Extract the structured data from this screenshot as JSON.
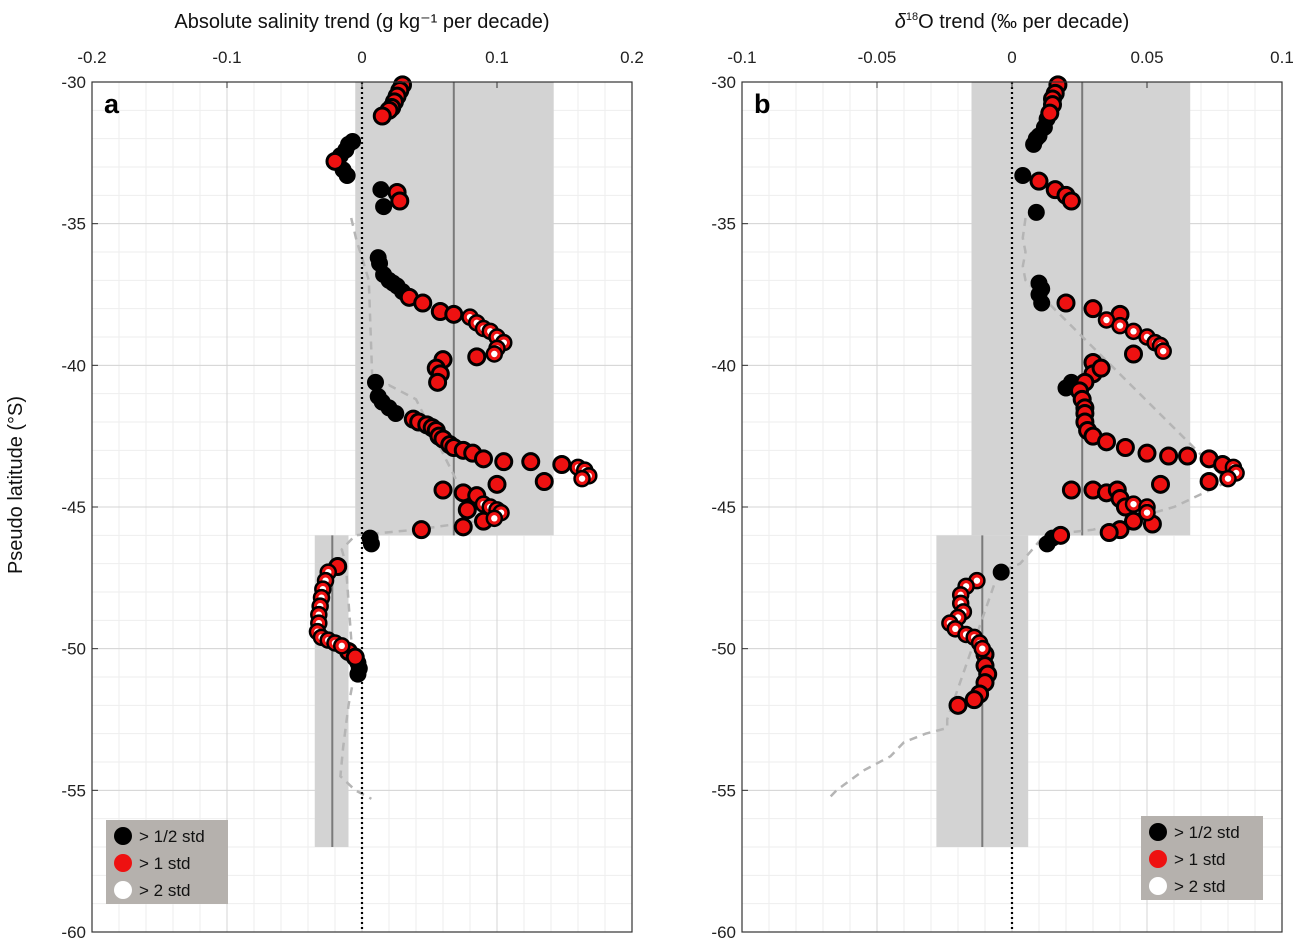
{
  "chart_data": [
    {
      "type": "scatter",
      "panel": "a",
      "xlabel": "Absolute salinity trend (g kg⁻¹ per decade)",
      "ylabel": "Pseudo latitude (°S)",
      "xlim": [
        -0.2,
        0.2
      ],
      "ylim": [
        -60,
        -30
      ],
      "xticks": [
        "-0.2",
        "-0.1",
        "0",
        "0.1",
        "0.2"
      ],
      "yticks": [
        "-30",
        "-35",
        "-40",
        "-45",
        "-50",
        "-55",
        "-60"
      ],
      "grid": true,
      "legend_position": "bottom-left",
      "bands": [
        {
          "lat_top": -30,
          "lat_bottom": -46,
          "mean": 0.068,
          "low": -0.005,
          "high": 0.142
        },
        {
          "lat_top": -46,
          "lat_bottom": -57,
          "mean": -0.022,
          "low": -0.035,
          "high": -0.01
        }
      ],
      "background_trend_dashed": [
        [
          -0.008,
          -34.8
        ],
        [
          -0.004,
          -35.6
        ],
        [
          0.0,
          -36.2
        ],
        [
          0.005,
          -37.0
        ],
        [
          0.008,
          -41.0
        ],
        [
          0.02,
          -40.7
        ],
        [
          0.04,
          -41.2
        ],
        [
          0.085,
          -45.5
        ],
        [
          0.04,
          -45.8
        ],
        [
          -0.005,
          -46.0
        ],
        [
          -0.015,
          -46.5
        ],
        [
          -0.012,
          -47.0
        ],
        [
          -0.006,
          -51.0
        ],
        [
          -0.01,
          -52.0
        ],
        [
          -0.014,
          -53.5
        ],
        [
          -0.016,
          -54.5
        ],
        [
          -0.005,
          -55.0
        ],
        [
          0.007,
          -55.3
        ]
      ],
      "series": [
        {
          "name": "> 1/2 std",
          "color": "#000000",
          "points": [
            [
              -0.012,
              -32.4
            ],
            [
              -0.016,
              -32.6
            ],
            [
              -0.01,
              -32.2
            ],
            [
              -0.007,
              -32.1
            ],
            [
              -0.014,
              -33.1
            ],
            [
              -0.011,
              -33.3
            ],
            [
              0.014,
              -33.8
            ],
            [
              0.016,
              -34.4
            ],
            [
              0.012,
              -36.2
            ],
            [
              0.013,
              -36.4
            ],
            [
              0.016,
              -36.8
            ],
            [
              0.02,
              -37.0
            ],
            [
              0.023,
              -37.1
            ],
            [
              0.026,
              -37.2
            ],
            [
              0.03,
              -37.4
            ],
            [
              0.01,
              -40.6
            ],
            [
              0.012,
              -41.1
            ],
            [
              0.015,
              -41.3
            ],
            [
              0.02,
              -41.5
            ],
            [
              0.025,
              -41.7
            ],
            [
              0.006,
              -46.1
            ],
            [
              0.007,
              -46.3
            ],
            [
              -0.003,
              -50.5
            ],
            [
              -0.002,
              -50.7
            ],
            [
              -0.003,
              -50.9
            ]
          ]
        },
        {
          "name": "> 1 std",
          "color": "#ee1111",
          "points": [
            [
              0.03,
              -30.1
            ],
            [
              0.028,
              -30.3
            ],
            [
              0.026,
              -30.5
            ],
            [
              0.024,
              -30.7
            ],
            [
              0.022,
              -30.9
            ],
            [
              0.02,
              -31.0
            ],
            [
              0.015,
              -31.2
            ],
            [
              -0.02,
              -32.8
            ],
            [
              0.026,
              -33.9
            ],
            [
              0.028,
              -34.2
            ],
            [
              0.035,
              -37.6
            ],
            [
              0.045,
              -37.8
            ],
            [
              0.058,
              -38.1
            ],
            [
              0.068,
              -38.2
            ],
            [
              0.085,
              -39.7
            ],
            [
              0.06,
              -39.8
            ],
            [
              0.055,
              -40.1
            ],
            [
              0.058,
              -40.3
            ],
            [
              0.056,
              -40.6
            ],
            [
              0.038,
              -41.9
            ],
            [
              0.042,
              -42.0
            ],
            [
              0.048,
              -42.1
            ],
            [
              0.052,
              -42.2
            ],
            [
              0.055,
              -42.3
            ],
            [
              0.057,
              -42.5
            ],
            [
              0.06,
              -42.6
            ],
            [
              0.065,
              -42.8
            ],
            [
              0.068,
              -42.9
            ],
            [
              0.075,
              -43.0
            ],
            [
              0.082,
              -43.1
            ],
            [
              0.09,
              -43.3
            ],
            [
              0.105,
              -43.4
            ],
            [
              0.125,
              -43.4
            ],
            [
              0.148,
              -43.5
            ],
            [
              0.1,
              -44.2
            ],
            [
              0.135,
              -44.1
            ],
            [
              0.06,
              -44.4
            ],
            [
              0.075,
              -44.5
            ],
            [
              0.085,
              -44.6
            ],
            [
              0.078,
              -45.1
            ],
            [
              0.09,
              -45.5
            ],
            [
              0.075,
              -45.7
            ],
            [
              0.044,
              -45.8
            ],
            [
              -0.01,
              -50.1
            ],
            [
              -0.005,
              -50.3
            ],
            [
              -0.018,
              -47.1
            ]
          ]
        },
        {
          "name": "> 2 std",
          "color": "#ffffff",
          "points": [
            [
              0.08,
              -38.3
            ],
            [
              0.085,
              -38.5
            ],
            [
              0.09,
              -38.7
            ],
            [
              0.095,
              -38.8
            ],
            [
              0.1,
              -39.0
            ],
            [
              0.105,
              -39.2
            ],
            [
              0.1,
              -39.4
            ],
            [
              0.098,
              -39.6
            ],
            [
              0.16,
              -43.6
            ],
            [
              0.165,
              -43.7
            ],
            [
              0.168,
              -43.9
            ],
            [
              0.163,
              -44.0
            ],
            [
              0.09,
              -44.9
            ],
            [
              0.095,
              -45.0
            ],
            [
              0.1,
              -45.1
            ],
            [
              0.103,
              -45.2
            ],
            [
              0.098,
              -45.4
            ],
            [
              -0.025,
              -47.3
            ],
            [
              -0.027,
              -47.6
            ],
            [
              -0.029,
              -47.9
            ],
            [
              -0.03,
              -48.2
            ],
            [
              -0.031,
              -48.5
            ],
            [
              -0.032,
              -48.8
            ],
            [
              -0.032,
              -49.1
            ],
            [
              -0.033,
              -49.4
            ],
            [
              -0.03,
              -49.6
            ],
            [
              -0.025,
              -49.7
            ],
            [
              -0.02,
              -49.8
            ],
            [
              -0.015,
              -49.9
            ]
          ]
        }
      ]
    },
    {
      "type": "scatter",
      "panel": "b",
      "xlabel_pre": "δ",
      "xlabel_sup": "18",
      "xlabel_post": "O trend (‰ per decade)",
      "xlim": [
        -0.1,
        0.1
      ],
      "ylim": [
        -60,
        -30
      ],
      "xticks": [
        "-0.1",
        "-0.05",
        "0",
        "0.05",
        "0.1"
      ],
      "yticks": [
        "-30",
        "-35",
        "-40",
        "-45",
        "-50",
        "-55",
        "-60"
      ],
      "grid": true,
      "legend_position": "bottom-right",
      "bands": [
        {
          "lat_top": -30,
          "lat_bottom": -46,
          "mean": 0.026,
          "low": -0.015,
          "high": 0.066
        },
        {
          "lat_top": -46,
          "lat_bottom": -57,
          "mean": -0.011,
          "low": -0.028,
          "high": 0.006
        }
      ],
      "background_trend_dashed": [
        [
          0.005,
          -34.8
        ],
        [
          0.004,
          -35.5
        ],
        [
          0.005,
          -36.0
        ],
        [
          0.004,
          -36.5
        ],
        [
          0.005,
          -37.0
        ],
        [
          0.08,
          -44.1
        ],
        [
          0.06,
          -45.0
        ],
        [
          0.03,
          -45.8
        ],
        [
          0.012,
          -46.0
        ],
        [
          0.003,
          -47.0
        ],
        [
          -0.005,
          -47.3
        ],
        [
          -0.024,
          -52.5
        ],
        [
          -0.024,
          -52.8
        ],
        [
          -0.032,
          -53.0
        ],
        [
          -0.04,
          -53.3
        ],
        [
          -0.045,
          -53.8
        ],
        [
          -0.055,
          -54.3
        ],
        [
          -0.065,
          -55.0
        ],
        [
          -0.068,
          -55.3
        ]
      ],
      "series": [
        {
          "name": "> 1/2 std",
          "color": "#000000",
          "points": [
            [
              0.01,
              -31.9
            ],
            [
              0.012,
              -31.6
            ],
            [
              0.013,
              -31.3
            ],
            [
              0.009,
              -32.0
            ],
            [
              0.008,
              -32.2
            ],
            [
              0.004,
              -33.3
            ],
            [
              0.009,
              -34.6
            ],
            [
              0.01,
              -37.1
            ],
            [
              0.011,
              -37.3
            ],
            [
              0.01,
              -37.5
            ],
            [
              0.011,
              -37.8
            ],
            [
              0.02,
              -40.8
            ],
            [
              0.022,
              -40.6
            ],
            [
              0.013,
              -46.3
            ],
            [
              0.015,
              -46.1
            ],
            [
              -0.004,
              -47.3
            ]
          ]
        },
        {
          "name": "> 1 std",
          "color": "#ee1111",
          "points": [
            [
              0.017,
              -30.1
            ],
            [
              0.016,
              -30.4
            ],
            [
              0.015,
              -30.6
            ],
            [
              0.015,
              -30.8
            ],
            [
              0.014,
              -31.1
            ],
            [
              0.01,
              -33.5
            ],
            [
              0.016,
              -33.8
            ],
            [
              0.02,
              -34.0
            ],
            [
              0.022,
              -34.2
            ],
            [
              0.02,
              -37.8
            ],
            [
              0.03,
              -38.0
            ],
            [
              0.04,
              -38.2
            ],
            [
              0.045,
              -39.6
            ],
            [
              0.03,
              -39.9
            ],
            [
              0.03,
              -40.3
            ],
            [
              0.033,
              -40.1
            ],
            [
              0.027,
              -40.6
            ],
            [
              0.025,
              -40.9
            ],
            [
              0.026,
              -41.2
            ],
            [
              0.027,
              -41.5
            ],
            [
              0.027,
              -41.7
            ],
            [
              0.027,
              -42.0
            ],
            [
              0.028,
              -42.3
            ],
            [
              0.03,
              -42.5
            ],
            [
              0.035,
              -42.7
            ],
            [
              0.042,
              -42.9
            ],
            [
              0.05,
              -43.1
            ],
            [
              0.058,
              -43.2
            ],
            [
              0.065,
              -43.2
            ],
            [
              0.073,
              -43.3
            ],
            [
              0.078,
              -43.5
            ],
            [
              0.073,
              -44.1
            ],
            [
              0.055,
              -44.2
            ],
            [
              0.022,
              -44.4
            ],
            [
              0.03,
              -44.4
            ],
            [
              0.035,
              -44.5
            ],
            [
              0.039,
              -44.4
            ],
            [
              0.04,
              -44.7
            ],
            [
              0.042,
              -45.0
            ],
            [
              0.045,
              -45.5
            ],
            [
              0.052,
              -45.6
            ],
            [
              0.04,
              -45.8
            ],
            [
              0.036,
              -45.9
            ],
            [
              0.018,
              -46.0
            ],
            [
              -0.01,
              -50.2
            ],
            [
              -0.01,
              -50.6
            ],
            [
              -0.009,
              -50.9
            ],
            [
              -0.01,
              -51.2
            ],
            [
              -0.012,
              -51.6
            ],
            [
              -0.014,
              -51.8
            ],
            [
              -0.02,
              -52.0
            ]
          ]
        },
        {
          "name": "> 2 std",
          "color": "#ffffff",
          "points": [
            [
              0.035,
              -38.4
            ],
            [
              0.04,
              -38.6
            ],
            [
              0.045,
              -38.8
            ],
            [
              0.05,
              -39.0
            ],
            [
              0.053,
              -39.2
            ],
            [
              0.055,
              -39.3
            ],
            [
              0.056,
              -39.5
            ],
            [
              0.082,
              -43.6
            ],
            [
              0.083,
              -43.8
            ],
            [
              0.08,
              -44.0
            ],
            [
              0.045,
              -44.9
            ],
            [
              0.05,
              -45.0
            ],
            [
              0.05,
              -45.2
            ],
            [
              -0.013,
              -47.6
            ],
            [
              -0.017,
              -47.8
            ],
            [
              -0.019,
              -48.1
            ],
            [
              -0.019,
              -48.4
            ],
            [
              -0.018,
              -48.7
            ],
            [
              -0.02,
              -48.9
            ],
            [
              -0.023,
              -49.1
            ],
            [
              -0.021,
              -49.3
            ],
            [
              -0.017,
              -49.5
            ],
            [
              -0.014,
              -49.6
            ],
            [
              -0.012,
              -49.8
            ],
            [
              -0.011,
              -50.0
            ]
          ]
        }
      ]
    }
  ],
  "legend": {
    "items": [
      {
        "label": "> 1/2 std",
        "color": "#000000"
      },
      {
        "label": "> 1 std",
        "color": "#ee1111"
      },
      {
        "label": "> 2 std",
        "color": "#ffffff"
      }
    ]
  }
}
